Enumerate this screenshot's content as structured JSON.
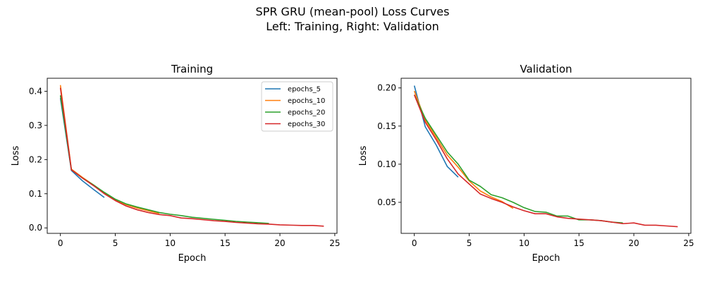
{
  "figure": {
    "title_line1": "SPR GRU (mean-pool) Loss Curves",
    "title_line2": "Left: Training, Right: Validation"
  },
  "chart_data": [
    {
      "type": "line",
      "title": "Training",
      "xlabel": "Epoch",
      "ylabel": "Loss",
      "xlim": [
        -1.2,
        25.2
      ],
      "ylim": [
        -0.016,
        0.438
      ],
      "xticks": [
        0,
        5,
        10,
        15,
        20,
        25
      ],
      "xtick_labels": [
        "0",
        "5",
        "10",
        "15",
        "20",
        "25"
      ],
      "yticks": [
        0.0,
        0.1,
        0.2,
        0.3,
        0.4
      ],
      "ytick_labels": [
        "0.0",
        "0.1",
        "0.2",
        "0.3",
        "0.4"
      ],
      "legend": "top-right",
      "series": [
        {
          "name": "epochs_5",
          "color": "#1f77b4",
          "x": [
            0,
            1,
            2,
            3,
            4
          ],
          "y": [
            0.38,
            0.168,
            0.138,
            0.113,
            0.089
          ]
        },
        {
          "name": "epochs_10",
          "color": "#ff7f0e",
          "x": [
            0,
            1,
            2,
            3,
            4,
            5,
            6,
            7,
            8,
            9
          ],
          "y": [
            0.418,
            0.172,
            0.148,
            0.126,
            0.102,
            0.082,
            0.068,
            0.058,
            0.05,
            0.042
          ]
        },
        {
          "name": "epochs_20",
          "color": "#2ca02c",
          "x": [
            0,
            1,
            2,
            3,
            4,
            5,
            6,
            7,
            8,
            9,
            10,
            11,
            12,
            13,
            14,
            15,
            16,
            17,
            18,
            19
          ],
          "y": [
            0.388,
            0.17,
            0.146,
            0.126,
            0.104,
            0.084,
            0.07,
            0.061,
            0.053,
            0.045,
            0.04,
            0.036,
            0.031,
            0.028,
            0.025,
            0.022,
            0.019,
            0.017,
            0.015,
            0.013
          ]
        },
        {
          "name": "epochs_30",
          "color": "#d62728",
          "x": [
            0,
            1,
            2,
            3,
            4,
            5,
            6,
            7,
            8,
            9,
            10,
            11,
            12,
            13,
            14,
            15,
            16,
            17,
            18,
            19,
            20,
            21,
            22,
            23,
            24
          ],
          "y": [
            0.41,
            0.17,
            0.146,
            0.124,
            0.1,
            0.08,
            0.064,
            0.053,
            0.045,
            0.039,
            0.036,
            0.029,
            0.027,
            0.024,
            0.021,
            0.019,
            0.016,
            0.014,
            0.012,
            0.011,
            0.009,
            0.008,
            0.007,
            0.007,
            0.005
          ]
        }
      ]
    },
    {
      "type": "line",
      "title": "Validation",
      "xlabel": "Epoch",
      "ylabel": "Loss",
      "xlim": [
        -1.2,
        25.2
      ],
      "ylim": [
        0.0093,
        0.2127
      ],
      "xticks": [
        0,
        5,
        10,
        15,
        20,
        25
      ],
      "xtick_labels": [
        "0",
        "5",
        "10",
        "15",
        "20",
        "25"
      ],
      "yticks": [
        0.05,
        0.1,
        0.15,
        0.2
      ],
      "ytick_labels": [
        "0.05",
        "0.10",
        "0.15",
        "0.20"
      ],
      "series": [
        {
          "name": "epochs_5",
          "color": "#1f77b4",
          "x": [
            0,
            1,
            2,
            3,
            4
          ],
          "y": [
            0.203,
            0.149,
            0.125,
            0.097,
            0.083
          ]
        },
        {
          "name": "epochs_10",
          "color": "#ff7f0e",
          "x": [
            0,
            1,
            2,
            3,
            4,
            5,
            6,
            7,
            8,
            9
          ],
          "y": [
            0.196,
            0.158,
            0.135,
            0.112,
            0.096,
            0.078,
            0.065,
            0.057,
            0.051,
            0.042
          ]
        },
        {
          "name": "epochs_20",
          "color": "#2ca02c",
          "x": [
            0,
            1,
            2,
            3,
            4,
            5,
            6,
            7,
            8,
            9,
            10,
            11,
            12,
            13,
            14,
            15,
            16,
            17,
            18,
            19
          ],
          "y": [
            0.191,
            0.16,
            0.138,
            0.116,
            0.1,
            0.079,
            0.071,
            0.06,
            0.056,
            0.05,
            0.043,
            0.038,
            0.037,
            0.032,
            0.032,
            0.027,
            0.027,
            0.026,
            0.024,
            0.023
          ]
        },
        {
          "name": "epochs_30",
          "color": "#d62728",
          "x": [
            0,
            1,
            2,
            3,
            4,
            5,
            6,
            7,
            8,
            9,
            10,
            11,
            12,
            13,
            14,
            15,
            16,
            17,
            18,
            19,
            20,
            21,
            22,
            23,
            24
          ],
          "y": [
            0.191,
            0.155,
            0.132,
            0.107,
            0.087,
            0.074,
            0.061,
            0.055,
            0.05,
            0.044,
            0.039,
            0.035,
            0.035,
            0.031,
            0.029,
            0.028,
            0.027,
            0.026,
            0.024,
            0.022,
            0.023,
            0.02,
            0.02,
            0.019,
            0.018
          ]
        }
      ]
    }
  ]
}
